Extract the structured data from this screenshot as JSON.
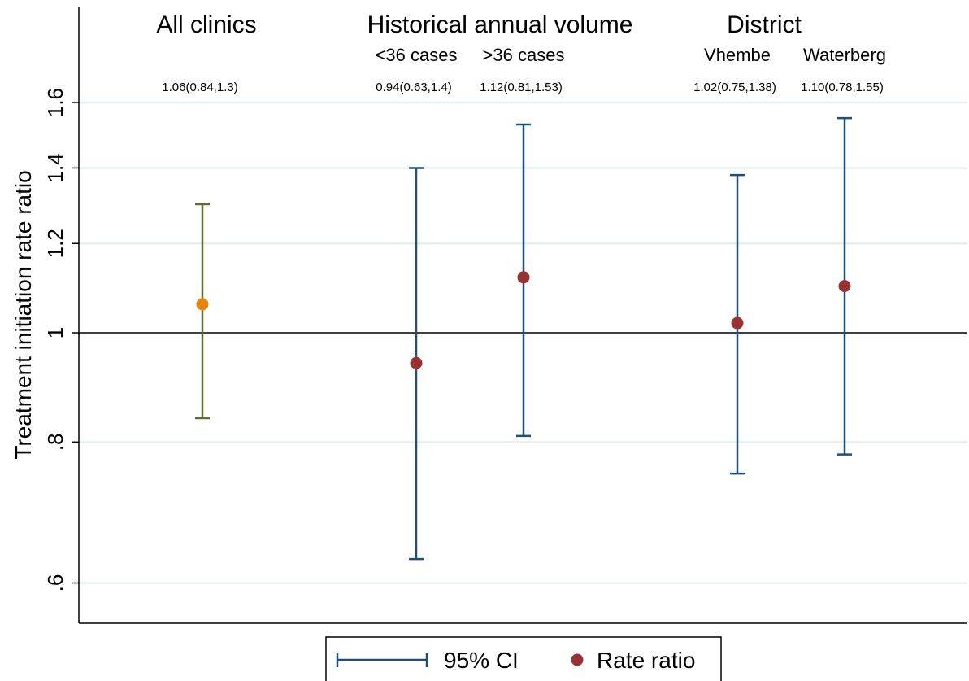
{
  "chart_data": {
    "type": "scatter",
    "subtype": "point-estimates-with-confidence-intervals",
    "ylabel": "Treatment initiation rate ratio",
    "y_scale": "log",
    "ylim": [
      0.575,
      1.78
    ],
    "yticks": [
      {
        "value": 0.6,
        "label": ".6"
      },
      {
        "value": 0.8,
        "label": ".8"
      },
      {
        "value": 1.0,
        "label": "1"
      },
      {
        "value": 1.2,
        "label": "1.2"
      },
      {
        "value": 1.4,
        "label": "1.4"
      },
      {
        "value": 1.6,
        "label": "1.6"
      }
    ],
    "reference_line": 1.0,
    "grid": true,
    "groups": [
      {
        "title": "All clinics"
      },
      {
        "title": "Historical annual volume"
      },
      {
        "title": "District"
      }
    ],
    "points": [
      {
        "group": 0,
        "sublabel": "",
        "estimate": 1.06,
        "ci_low": 0.84,
        "ci_high": 1.3,
        "label": "1.06(0.84,1.3)",
        "marker_color": "#e8840a",
        "ci_color": "#5a7030"
      },
      {
        "group": 1,
        "sublabel": "<36 cases",
        "estimate": 0.94,
        "ci_low": 0.63,
        "ci_high": 1.4,
        "label": "0.94(0.63,1.4)",
        "marker_color": "#993333",
        "ci_color": "#1f4e79"
      },
      {
        "group": 1,
        "sublabel": ">36 cases",
        "estimate": 1.12,
        "ci_low": 0.81,
        "ci_high": 1.53,
        "label": "1.12(0.81,1.53)",
        "marker_color": "#993333",
        "ci_color": "#1f4e79"
      },
      {
        "group": 2,
        "sublabel": "Vhembe",
        "estimate": 1.02,
        "ci_low": 0.75,
        "ci_high": 1.38,
        "label": "1.02(0.75,1.38)",
        "marker_color": "#993333",
        "ci_color": "#1f4e79"
      },
      {
        "group": 2,
        "sublabel": "Waterberg",
        "estimate": 1.1,
        "ci_low": 0.78,
        "ci_high": 1.55,
        "label": "1.10(0.78,1.55)",
        "marker_color": "#993333",
        "ci_color": "#1f4e79"
      }
    ],
    "legend": {
      "placement": "bottom-center",
      "entries": [
        {
          "label": "95% CI",
          "kind": "capped-line",
          "color": "#1f4e79"
        },
        {
          "label": "Rate ratio",
          "kind": "dot",
          "color": "#993333"
        }
      ]
    },
    "colors": {
      "grid": "#e6efef",
      "axis": "#000000",
      "reference": "#000000"
    }
  }
}
